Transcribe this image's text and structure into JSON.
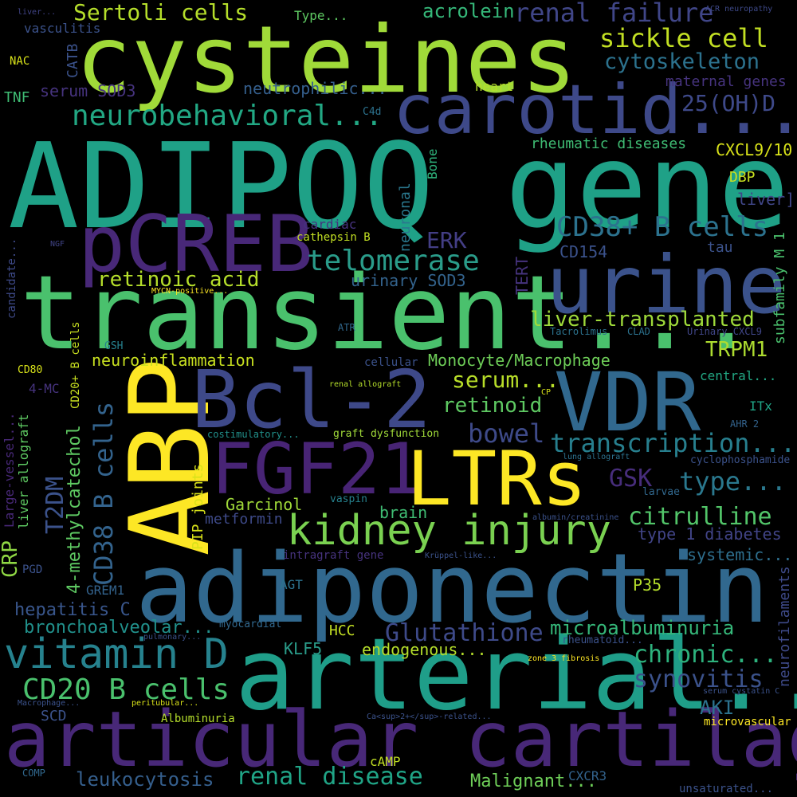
{
  "words": [
    {
      "text": "cysteines",
      "color": "#a0da39"
    },
    {
      "text": "ADIPOQ gene",
      "color": "#1fa187"
    },
    {
      "text": "transient...",
      "color": "#4ac16d"
    },
    {
      "text": "adiponectin",
      "color": "#31688e"
    },
    {
      "text": "arterial...",
      "color": "#1f9e89"
    },
    {
      "text": "articular cartilage",
      "color": "#482878"
    },
    {
      "text": "ABP",
      "color": "#fde725"
    },
    {
      "text": "Bcl-2",
      "color": "#3e4989"
    },
    {
      "text": "VDR",
      "color": "#31688e"
    },
    {
      "text": "carotid...",
      "color": "#3e4989"
    },
    {
      "text": "urine",
      "color": "#3b528b"
    },
    {
      "text": "pCREB",
      "color": "#482878"
    },
    {
      "text": "FGF21",
      "color": "#482475"
    },
    {
      "text": "LTRs",
      "color": "#fde725"
    },
    {
      "text": "kidney injury",
      "color": "#7ad151"
    },
    {
      "text": "vitamin D",
      "color": "#26828e"
    },
    {
      "text": "CD20 B cells",
      "color": "#4ac16d"
    },
    {
      "text": "sickle cell",
      "color": "#c2df23"
    },
    {
      "text": "renal failure",
      "color": "#404688"
    },
    {
      "text": "Sertoli cells",
      "color": "#b5de2b"
    },
    {
      "text": "acrolein",
      "color": "#35b779"
    },
    {
      "text": "cytoskeleton",
      "color": "#2c728e"
    },
    {
      "text": "neurobehavioral...",
      "color": "#22a884"
    },
    {
      "text": "25(OH)D",
      "color": "#3e4989"
    },
    {
      "text": "telomerase",
      "color": "#2a9c8a"
    },
    {
      "text": "CD38+ B cells",
      "color": "#2c728e"
    },
    {
      "text": "retinoic acid",
      "color": "#b5de2b"
    },
    {
      "text": "ERK",
      "color": "#433e85"
    },
    {
      "text": "liver-transplanted",
      "color": "#9fda3a"
    },
    {
      "text": "TRPM1",
      "color": "#addc30"
    },
    {
      "text": "neuroinflammation",
      "color": "#c8e020"
    },
    {
      "text": "Monocyte/Macrophage",
      "color": "#6ece58"
    },
    {
      "text": "serum...",
      "color": "#b8de29"
    },
    {
      "text": "retinoid",
      "color": "#5ec962"
    },
    {
      "text": "bowel",
      "color": "#3e4a89"
    },
    {
      "text": "transcription...",
      "color": "#277f8e"
    },
    {
      "text": "type...",
      "color": "#2a788e"
    },
    {
      "text": "GSK",
      "color": "#472d7b"
    },
    {
      "text": "citrulline",
      "color": "#52c569"
    },
    {
      "text": "CD38 B cells",
      "color": "#33638d"
    },
    {
      "text": "T2DM",
      "color": "#3b528b"
    },
    {
      "text": "4-methylcatechol",
      "color": "#5ec962"
    },
    {
      "text": "CRP",
      "color": "#8fd744"
    },
    {
      "text": "Garcinol",
      "color": "#a0da39"
    },
    {
      "text": "metformin",
      "color": "#3e4a89"
    },
    {
      "text": "brain",
      "color": "#3fbc73"
    },
    {
      "text": "type 1 diabetes",
      "color": "#414487"
    },
    {
      "text": "systemic...",
      "color": "#2e6f8e"
    },
    {
      "text": "hepatitis C",
      "color": "#39568c"
    },
    {
      "text": "bronchoalveolar...",
      "color": "#21918c"
    },
    {
      "text": "Glutathione",
      "color": "#3e4a89"
    },
    {
      "text": "microalbuminuria",
      "color": "#35b779"
    },
    {
      "text": "chronic...",
      "color": "#2db27d"
    },
    {
      "text": "synovitis",
      "color": "#3b528b"
    },
    {
      "text": "renal disease",
      "color": "#20a486"
    },
    {
      "text": "leukocytosis",
      "color": "#355f8d"
    },
    {
      "text": "Malignant...",
      "color": "#6ece58"
    },
    {
      "text": "AKI",
      "color": "#2c728e"
    },
    {
      "text": "rheumatic diseases",
      "color": "#3fbc73"
    },
    {
      "text": "CXCL9/10",
      "color": "#d8e219"
    },
    {
      "text": "DBP",
      "color": "#c8e020"
    },
    {
      "text": "liver]",
      "color": "#404688"
    },
    {
      "text": "neutrophilic...",
      "color": "#355f8d"
    },
    {
      "text": "maternal genes",
      "color": "#46337e"
    },
    {
      "text": "serum SOD3",
      "color": "#46337e"
    },
    {
      "text": "heart",
      "color": "#b5de2b"
    },
    {
      "text": "CATB",
      "color": "#3b528b"
    },
    {
      "text": "TNF",
      "color": "#3fbc73"
    },
    {
      "text": "NAC",
      "color": "#d8e219"
    },
    {
      "text": "vasculitis",
      "color": "#3b528b"
    },
    {
      "text": "Type...",
      "color": "#5ec962"
    },
    {
      "text": "liver...",
      "color": "#414487"
    },
    {
      "text": "ACR neuropathy",
      "color": "#3e4989"
    },
    {
      "text": "C4d",
      "color": "#2c728e"
    },
    {
      "text": "Bone",
      "color": "#2fb47c"
    },
    {
      "text": "neuronal",
      "color": "#2a788e"
    },
    {
      "text": "cardiac",
      "color": "#46337e"
    },
    {
      "text": "cathepsin B",
      "color": "#c2df23"
    },
    {
      "text": "CD154",
      "color": "#3b528b"
    },
    {
      "text": "tau",
      "color": "#3b528b"
    },
    {
      "text": "subfamily M 1",
      "color": "#4ac16d"
    },
    {
      "text": "TERT",
      "color": "#46337e"
    },
    {
      "text": "urinary SOD3",
      "color": "#33638d"
    },
    {
      "text": "MYCN-positive...",
      "color": "#fde725"
    },
    {
      "text": "NGF",
      "color": "#414487"
    },
    {
      "text": "candidate...",
      "color": "#3e4a89"
    },
    {
      "text": "ATR",
      "color": "#31688e"
    },
    {
      "text": "Tacrolimus",
      "color": "#2c728e"
    },
    {
      "text": "CLAD",
      "color": "#2c728e"
    },
    {
      "text": "Urinary CXCL9",
      "color": "#404688"
    },
    {
      "text": "GSH",
      "color": "#26828e"
    },
    {
      "text": "cellular",
      "color": "#3b528b"
    },
    {
      "text": "central...",
      "color": "#22a884"
    },
    {
      "text": "CD80",
      "color": "#d8e219"
    },
    {
      "text": "CD20+ B cells",
      "color": "#c8e020"
    },
    {
      "text": "4-MC",
      "color": "#46337e"
    },
    {
      "text": "Large-vessel...",
      "color": "#482878"
    },
    {
      "text": "liver allograft",
      "color": "#5ec962"
    },
    {
      "text": "renal allograft",
      "color": "#b5de2b"
    },
    {
      "text": "CP",
      "color": "#d8e219"
    },
    {
      "text": "ITx",
      "color": "#20a486"
    },
    {
      "text": "AHR 2",
      "color": "#33638d"
    },
    {
      "text": "costimulatory...",
      "color": "#21918c"
    },
    {
      "text": "graft dysfunction",
      "color": "#a0da39"
    },
    {
      "text": "lung allograft",
      "color": "#2c728e"
    },
    {
      "text": "cyclophosphamide",
      "color": "#3b528b"
    },
    {
      "text": "larvae",
      "color": "#31688e"
    },
    {
      "text": "vaspin",
      "color": "#26828e"
    },
    {
      "text": "PIP joints",
      "color": "#d8e219"
    },
    {
      "text": "albumin/creatinine",
      "color": "#3b528b"
    },
    {
      "text": "intragraft gene",
      "color": "#46337e"
    },
    {
      "text": "Krüppel-like...",
      "color": "#3b528b"
    },
    {
      "text": "PGD",
      "color": "#3b528b"
    },
    {
      "text": "GREM1",
      "color": "#33638d"
    },
    {
      "text": "AGT",
      "color": "#2c728e"
    },
    {
      "text": "P35",
      "color": "#b5de2b"
    },
    {
      "text": "myocardial",
      "color": "#31688e"
    },
    {
      "text": "pulmonary...",
      "color": "#3b528b"
    },
    {
      "text": "HCC",
      "color": "#c2df23"
    },
    {
      "text": "KLF5",
      "color": "#2a9c8a"
    },
    {
      "text": "endogenous...",
      "color": "#b5de2b"
    },
    {
      "text": "rheumatoid...",
      "color": "#3b528b"
    },
    {
      "text": "zone 3 fibrosis",
      "color": "#fde725"
    },
    {
      "text": "neurofilaments",
      "color": "#3e4a89"
    },
    {
      "text": "serum cystatin C",
      "color": "#3b528b"
    },
    {
      "text": "Macrophage...",
      "color": "#3b528b"
    },
    {
      "text": "peritubular...",
      "color": "#d8e219"
    },
    {
      "text": "Albuminuria",
      "color": "#b5de2b"
    },
    {
      "text": "Ca<sup>2+</sup>-related...",
      "color": "#3b528b"
    },
    {
      "text": "microvascular",
      "color": "#fde725"
    },
    {
      "text": "SCD",
      "color": "#3b528b"
    },
    {
      "text": "cAMP",
      "color": "#c2df23"
    },
    {
      "text": "CXCR3",
      "color": "#33638d"
    },
    {
      "text": "COMP",
      "color": "#31688e"
    },
    {
      "text": "unsaturated...",
      "color": "#3b528b"
    }
  ]
}
